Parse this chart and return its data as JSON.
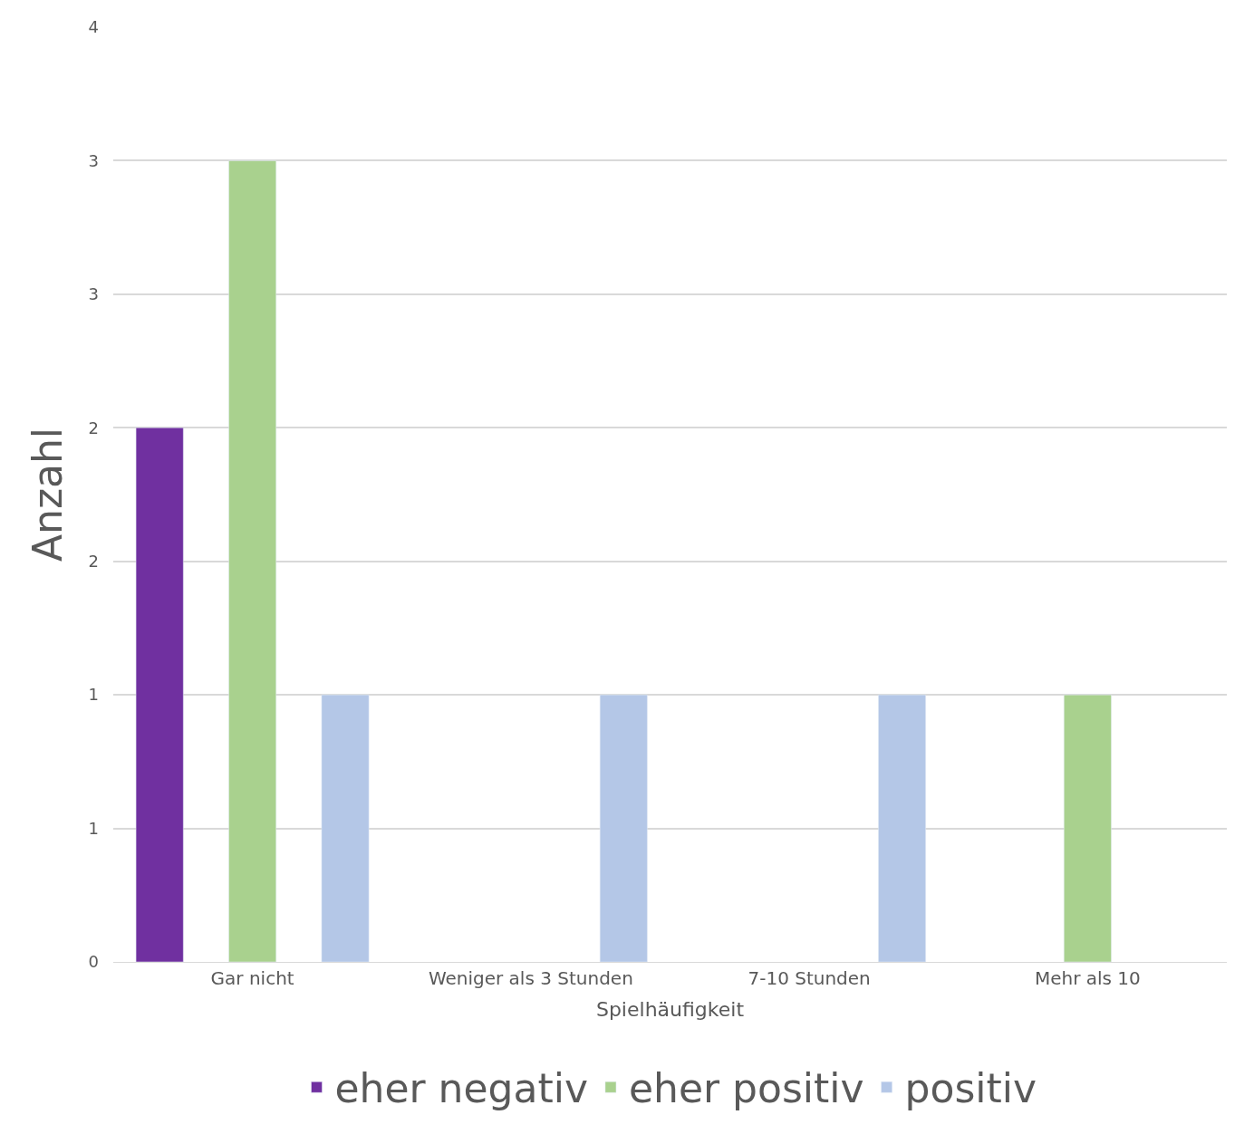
{
  "chart_data": {
    "type": "bar",
    "xlabel": "Spielhäufigkeit",
    "ylabel": "Anzahl",
    "categories": [
      "Gar nicht",
      "Weniger als 3 Stunden",
      "7-10 Stunden",
      "Mehr als 10"
    ],
    "series": [
      {
        "name": "eher negativ",
        "color": "#7030a0",
        "values": [
          2,
          null,
          null,
          null
        ]
      },
      {
        "name": "eher positiv",
        "color": "#a9d18e",
        "values": [
          3,
          null,
          null,
          1
        ]
      },
      {
        "name": "positiv",
        "color": "#b4c7e7",
        "values": [
          1,
          1,
          1,
          null
        ]
      }
    ],
    "ylim": [
      0,
      3.5
    ],
    "yticks": [
      0,
      {
        "value": 0.5,
        "label": "1"
      },
      1,
      {
        "value": 1.5,
        "label": "2"
      },
      2,
      {
        "value": 2.5,
        "label": "3"
      },
      3,
      {
        "value": 3.5,
        "label": "4"
      }
    ],
    "grid": "y",
    "legend": "bottom"
  }
}
